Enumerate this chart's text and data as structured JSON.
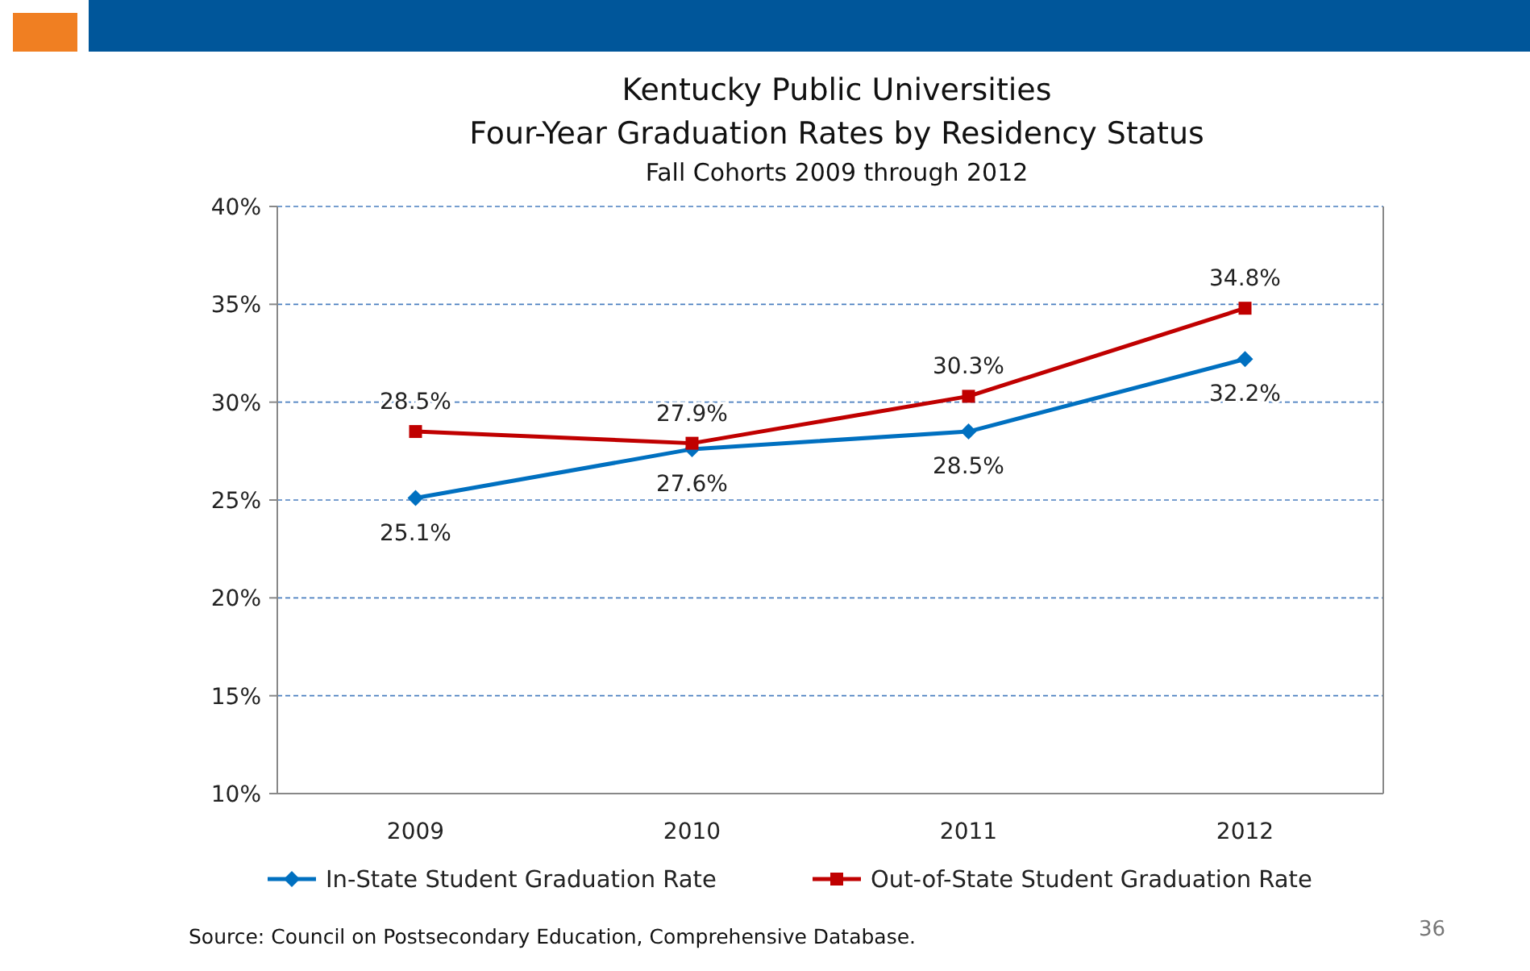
{
  "chart_data": {
    "type": "line",
    "title": "Kentucky Public Universities\nFour-Year Graduation Rates by Residency Status",
    "subtitle": "Fall Cohorts 2009 through 2012",
    "categories": [
      "2009",
      "2010",
      "2011",
      "2012"
    ],
    "series": [
      {
        "name": "In-State Student Graduation Rate",
        "color": "#0070c0",
        "marker": "diamond",
        "values": [
          25.1,
          27.6,
          28.5,
          32.2
        ],
        "value_labels": [
          "25.1%",
          "27.6%",
          "28.5%",
          "32.2%"
        ]
      },
      {
        "name": "Out-of-State Student Graduation Rate",
        "color": "#c00000",
        "marker": "square",
        "values": [
          28.5,
          27.9,
          30.3,
          34.8
        ],
        "value_labels": [
          "28.5%",
          "27.9%",
          "30.3%",
          "34.8%"
        ]
      }
    ],
    "ylim": [
      10,
      40
    ],
    "yticks": [
      {
        "value": 10,
        "label": "10%"
      },
      {
        "value": 15,
        "label": "15%"
      },
      {
        "value": 20,
        "label": "20%"
      },
      {
        "value": 25,
        "label": "25%"
      },
      {
        "value": 30,
        "label": "30%"
      },
      {
        "value": 35,
        "label": "35%"
      },
      {
        "value": 40,
        "label": "40%"
      }
    ],
    "grid": "y",
    "legend": "bottom",
    "line_style": "solid",
    "annotations": [
      "Source:  Council on Postsecondary Education, Comprehensive Database.",
      "36"
    ]
  }
}
